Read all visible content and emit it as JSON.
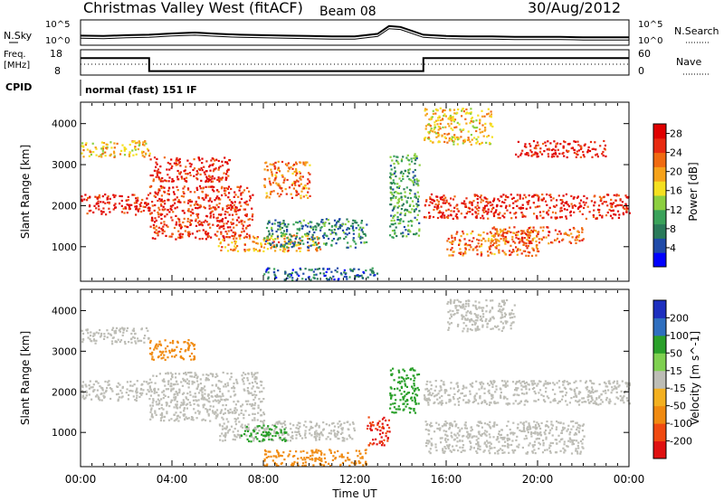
{
  "header": {
    "title": "Christmas Valley West (fitACF)",
    "beam": "Beam 08",
    "date": "30/Aug/2012"
  },
  "chart_data": [
    {
      "type": "line",
      "panel": "nsky-nsearch",
      "left_label": "N.Sky",
      "right_label": "N.Search",
      "yticks_left": [
        "10^5",
        "10^0"
      ],
      "yticks_right": [
        "10^5",
        "10^0"
      ],
      "x_hours": [
        0,
        1,
        2,
        3,
        4,
        5,
        6,
        7,
        8,
        9,
        10,
        11,
        12,
        13,
        13.5,
        14,
        15,
        16,
        17,
        18,
        19,
        20,
        21,
        22,
        23,
        24
      ],
      "nsky_log10": [
        1.8,
        1.7,
        1.9,
        2.0,
        2.3,
        2.5,
        2.2,
        2.0,
        1.9,
        1.8,
        1.7,
        1.6,
        1.6,
        2.2,
        4.0,
        3.8,
        2.0,
        1.7,
        1.6,
        1.6,
        1.5,
        1.5,
        1.5,
        1.4,
        1.4,
        1.4
      ]
    },
    {
      "type": "line",
      "panel": "freq-nave",
      "left_label": "Freq.",
      "left_unit": "[MHz]",
      "right_label": "Nave",
      "yticks_left": [
        "18",
        "8"
      ],
      "yticks_right": [
        "60",
        "0"
      ],
      "freq_mhz": [
        {
          "start_h": 0,
          "end_h": 3,
          "value": 15
        },
        {
          "start_h": 3,
          "end_h": 15,
          "value": 9
        },
        {
          "start_h": 15,
          "end_h": 24,
          "value": 15
        }
      ],
      "nave_level": 25
    },
    {
      "type": "table",
      "panel": "cpid",
      "label": "CPID",
      "segments": [
        {
          "start_h": 0,
          "end_h": 24,
          "text": "normal (fast) 151 IF"
        }
      ]
    },
    {
      "type": "heatmap",
      "panel": "power",
      "ylabel": "Slant Range [km]",
      "yticks": [
        1000,
        2000,
        3000,
        4000
      ],
      "ylim": [
        180,
        4500
      ],
      "xlim_hours": [
        0,
        24
      ],
      "colorbar": {
        "label": "Power [dB]",
        "ticks": [
          4,
          8,
          12,
          16,
          20,
          24,
          28
        ],
        "range": [
          0,
          30
        ]
      },
      "regions": [
        {
          "t0": 0,
          "t1": 3,
          "r0": 1800,
          "r1": 2300,
          "value": 27
        },
        {
          "t0": 0,
          "t1": 3,
          "r0": 3200,
          "r1": 3600,
          "value": 18
        },
        {
          "t0": 3,
          "t1": 7.5,
          "r0": 1200,
          "r1": 2500,
          "value": 26
        },
        {
          "t0": 3,
          "t1": 6.5,
          "r0": 2600,
          "r1": 3200,
          "value": 27
        },
        {
          "t0": 6,
          "t1": 10.5,
          "r0": 900,
          "r1": 1300,
          "value": 20
        },
        {
          "t0": 8,
          "t1": 12.5,
          "r0": 1000,
          "r1": 1700,
          "value": 8
        },
        {
          "t0": 8,
          "t1": 10,
          "r0": 2200,
          "r1": 3100,
          "value": 22
        },
        {
          "t0": 8,
          "t1": 13,
          "r0": 200,
          "r1": 500,
          "value": 6
        },
        {
          "t0": 13.5,
          "t1": 14.8,
          "r0": 1200,
          "r1": 3300,
          "value": 10
        },
        {
          "t0": 15,
          "t1": 24,
          "r0": 1700,
          "r1": 2300,
          "value": 27
        },
        {
          "t0": 15,
          "t1": 18,
          "r0": 3500,
          "r1": 4400,
          "value": 18
        },
        {
          "t0": 19,
          "t1": 23,
          "r0": 3200,
          "r1": 3600,
          "value": 27
        },
        {
          "t0": 16,
          "t1": 20,
          "r0": 800,
          "r1": 1400,
          "value": 22
        },
        {
          "t0": 18,
          "t1": 22,
          "r0": 1100,
          "r1": 1500,
          "value": 24
        }
      ]
    },
    {
      "type": "heatmap",
      "panel": "velocity",
      "ylabel": "Slant Range [km]",
      "yticks": [
        1000,
        2000,
        3000,
        4000
      ],
      "ylim": [
        180,
        4500
      ],
      "xlim_hours": [
        0,
        24
      ],
      "xticks": [
        "00:00",
        "04:00",
        "08:00",
        "12:00",
        "16:00",
        "20:00",
        "00:00"
      ],
      "xlabel": "Time UT",
      "colorbar": {
        "label": "Velocity [m s^-1]",
        "ticks": [
          "200",
          "100",
          "50",
          "15",
          "-15",
          "-50",
          "-100",
          "-200"
        ]
      },
      "regions": [
        {
          "t0": 0,
          "t1": 3,
          "r0": 1800,
          "r1": 2300,
          "value": 0
        },
        {
          "t0": 0,
          "t1": 3,
          "r0": 3200,
          "r1": 3600,
          "value": 0
        },
        {
          "t0": 3,
          "t1": 8,
          "r0": 1300,
          "r1": 2500,
          "value": 0
        },
        {
          "t0": 3,
          "t1": 5,
          "r0": 2800,
          "r1": 3300,
          "value": -60
        },
        {
          "t0": 6,
          "t1": 12,
          "r0": 800,
          "r1": 1300,
          "value": 0
        },
        {
          "t0": 7,
          "t1": 9,
          "r0": 800,
          "r1": 1200,
          "value": 60
        },
        {
          "t0": 8,
          "t1": 12.5,
          "r0": 200,
          "r1": 600,
          "value": -60
        },
        {
          "t0": 12.5,
          "t1": 13.5,
          "r0": 700,
          "r1": 1400,
          "value": -150
        },
        {
          "t0": 13.5,
          "t1": 14.8,
          "r0": 1500,
          "r1": 2600,
          "value": 60
        },
        {
          "t0": 15,
          "t1": 24,
          "r0": 1700,
          "r1": 2300,
          "value": 0
        },
        {
          "t0": 16,
          "t1": 19,
          "r0": 3500,
          "r1": 4300,
          "value": 0
        },
        {
          "t0": 15,
          "t1": 22,
          "r0": 500,
          "r1": 1300,
          "value": 0
        }
      ]
    }
  ]
}
